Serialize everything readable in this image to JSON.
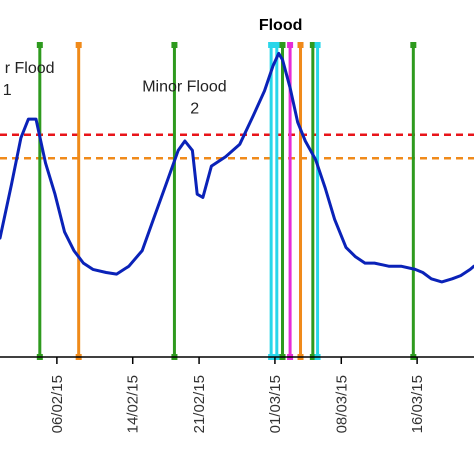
{
  "chart_data": {
    "type": "line",
    "title": "",
    "xlabel": "",
    "ylabel": "",
    "x_tick_labels": [
      "06/02/15",
      "14/02/15",
      "21/02/15",
      "01/03/15",
      "08/03/15",
      "16/03/15"
    ],
    "x_tick_days": [
      6,
      14,
      21,
      29,
      36,
      44
    ],
    "x_range_days": [
      0,
      50
    ],
    "y_range": [
      0,
      1
    ],
    "grid": false,
    "series": [
      {
        "color": "#0a22b8",
        "points": [
          [
            0,
            0.38
          ],
          [
            1.2,
            0.55
          ],
          [
            2.2,
            0.7
          ],
          [
            3.0,
            0.76
          ],
          [
            3.8,
            0.76
          ],
          [
            4.8,
            0.62
          ],
          [
            5.8,
            0.52
          ],
          [
            6.8,
            0.4
          ],
          [
            7.8,
            0.34
          ],
          [
            8.8,
            0.3
          ],
          [
            9.8,
            0.28
          ],
          [
            11.2,
            0.27
          ],
          [
            12.3,
            0.265
          ],
          [
            13.6,
            0.29
          ],
          [
            15.0,
            0.34
          ],
          [
            16.3,
            0.45
          ],
          [
            17.5,
            0.55
          ],
          [
            18.8,
            0.66
          ],
          [
            19.5,
            0.69
          ],
          [
            20.3,
            0.66
          ],
          [
            20.8,
            0.52
          ],
          [
            21.4,
            0.51
          ],
          [
            22.3,
            0.61
          ],
          [
            23.8,
            0.64
          ],
          [
            25.3,
            0.68
          ],
          [
            26.7,
            0.77
          ],
          [
            27.9,
            0.85
          ],
          [
            28.8,
            0.93
          ],
          [
            29.4,
            0.97
          ],
          [
            29.8,
            0.95
          ],
          [
            30.6,
            0.86
          ],
          [
            31.4,
            0.75
          ],
          [
            32.2,
            0.69
          ],
          [
            33.3,
            0.63
          ],
          [
            34.3,
            0.54
          ],
          [
            35.3,
            0.44
          ],
          [
            36.5,
            0.35
          ],
          [
            37.5,
            0.32
          ],
          [
            38.5,
            0.3
          ],
          [
            39.5,
            0.3
          ],
          [
            41.0,
            0.29
          ],
          [
            42.3,
            0.29
          ],
          [
            43.8,
            0.28
          ],
          [
            44.6,
            0.27
          ],
          [
            45.5,
            0.25
          ],
          [
            46.6,
            0.24
          ],
          [
            47.7,
            0.25
          ],
          [
            48.6,
            0.26
          ],
          [
            49.6,
            0.28
          ],
          [
            50,
            0.29
          ]
        ]
      }
    ],
    "thresholds": [
      {
        "y": 0.71,
        "color": "#e8141a"
      },
      {
        "y": 0.635,
        "color": "#f08a1a"
      }
    ],
    "event_lines": [
      {
        "day": 4.2,
        "color": "#2e9a1e"
      },
      {
        "day": 8.3,
        "color": "#f08a1a"
      },
      {
        "day": 18.4,
        "color": "#2e9a1e"
      },
      {
        "day": 28.6,
        "color": "#29d6ea"
      },
      {
        "day": 29.2,
        "color": "#29d6ea"
      },
      {
        "day": 29.8,
        "color": "#2e9a1e"
      },
      {
        "day": 30.6,
        "color": "#e62cd6"
      },
      {
        "day": 31.7,
        "color": "#f08a1a"
      },
      {
        "day": 33.0,
        "color": "#2e9a1e"
      },
      {
        "day": 33.5,
        "color": "#29d6ea"
      },
      {
        "day": 43.6,
        "color": "#2e9a1e"
      }
    ],
    "annotations": [
      {
        "id": "minor-flood-1",
        "lines": [
          "r Flood",
          "1"
        ],
        "day": 0.5,
        "y": 0.78
      },
      {
        "id": "minor-flood-2",
        "lines": [
          "Minor Flood",
          "2"
        ],
        "day": 15.0,
        "y": 0.72
      },
      {
        "id": "flood",
        "lines": [
          "Flood"
        ],
        "day": 29.6,
        "y": 1.0
      }
    ]
  }
}
